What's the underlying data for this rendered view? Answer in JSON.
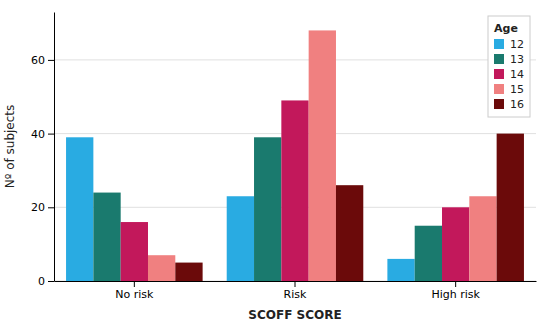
{
  "chart_data": {
    "type": "bar",
    "categories": [
      "No risk",
      "Risk",
      "High risk"
    ],
    "series": [
      {
        "name": "12",
        "color": "#29ABE2",
        "values": [
          39,
          23,
          6
        ]
      },
      {
        "name": "13",
        "color": "#1A7A6E",
        "values": [
          24,
          39,
          15
        ]
      },
      {
        "name": "14",
        "color": "#C2185B",
        "values": [
          16,
          49,
          20
        ]
      },
      {
        "name": "15",
        "color": "#F08080",
        "values": [
          7,
          68,
          23
        ]
      },
      {
        "name": "16",
        "color": "#6B0A0A",
        "values": [
          5,
          26,
          40
        ]
      }
    ],
    "xlabel": "SCOFF SCORE",
    "ylabel": "Nº of subjects",
    "legend_title": "Age",
    "ylim": [
      0,
      73
    ],
    "yticks": [
      0,
      20,
      40,
      60
    ],
    "grid": true,
    "legend": "upper right"
  }
}
